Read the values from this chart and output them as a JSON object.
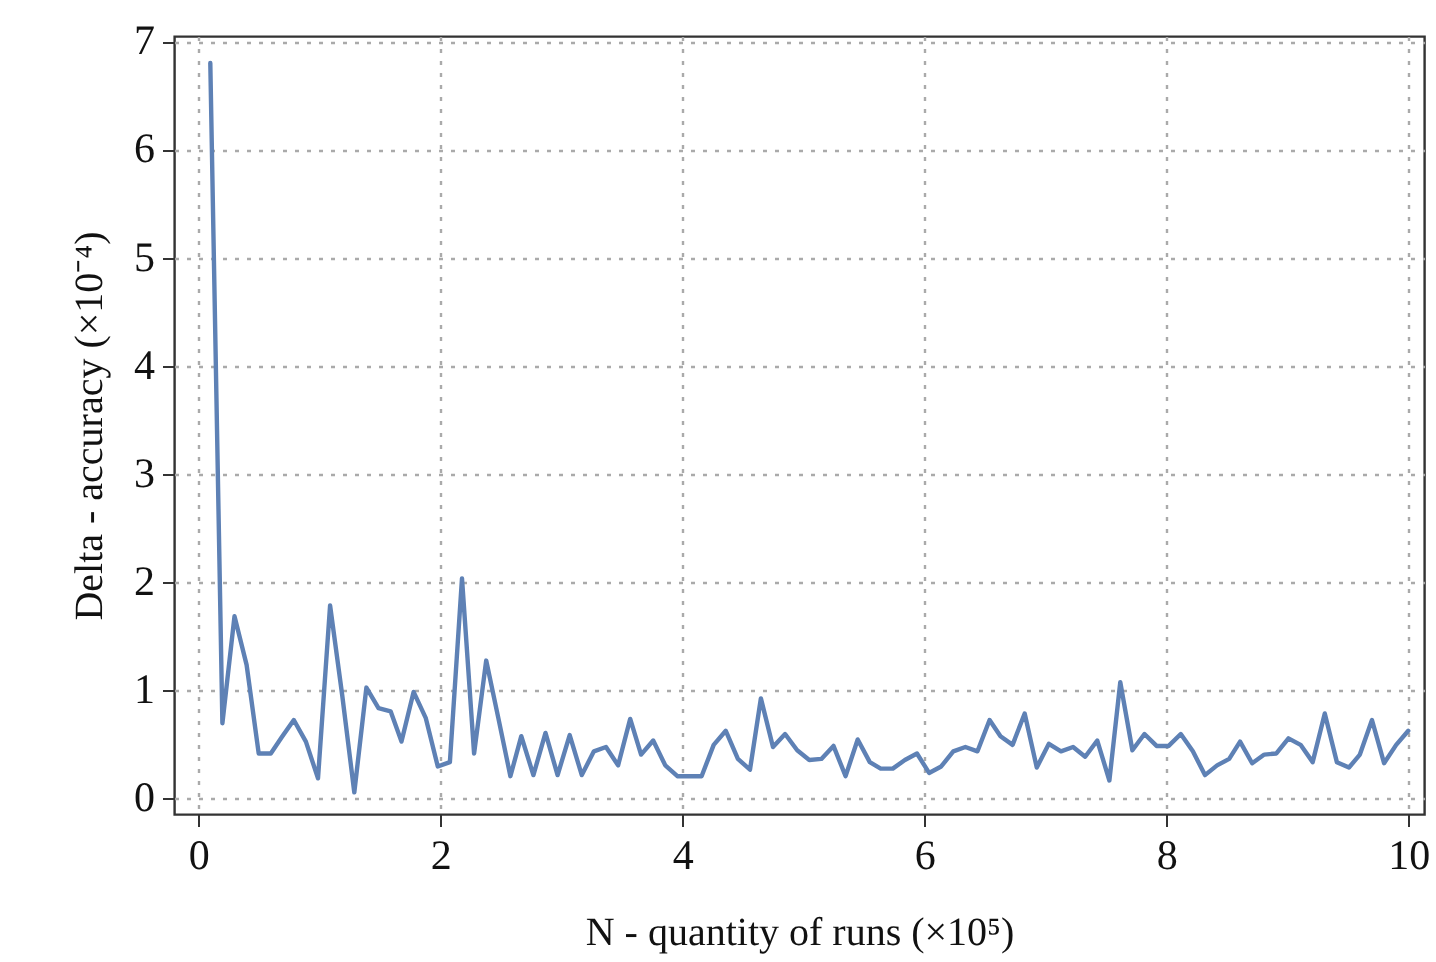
{
  "chart_data": {
    "type": "line",
    "xlabel": "N - quantity of runs (×10⁵)",
    "ylabel": "Delta - accuracy (×10⁻⁴)",
    "x": [
      0.1,
      0.2,
      0.3,
      0.4,
      0.5,
      0.6,
      0.69,
      0.79,
      0.89,
      0.99,
      1.09,
      1.19,
      1.29,
      1.39,
      1.49,
      1.59,
      1.68,
      1.78,
      1.88,
      1.98,
      2.08,
      2.18,
      2.28,
      2.38,
      2.48,
      2.58,
      2.67,
      2.77,
      2.87,
      2.97,
      3.07,
      3.17,
      3.27,
      3.37,
      3.47,
      3.57,
      3.66,
      3.76,
      3.86,
      3.96,
      4.06,
      4.16,
      4.26,
      4.36,
      4.46,
      4.56,
      4.65,
      4.75,
      4.85,
      4.95,
      5.05,
      5.15,
      5.25,
      5.35,
      5.45,
      5.55,
      5.64,
      5.74,
      5.84,
      5.94,
      6.04,
      6.14,
      6.24,
      6.34,
      6.44,
      6.54,
      6.63,
      6.73,
      6.83,
      6.93,
      7.03,
      7.13,
      7.23,
      7.33,
      7.43,
      7.53,
      7.62,
      7.72,
      7.82,
      7.92,
      8.02,
      8.12,
      8.22,
      8.32,
      8.42,
      8.52,
      8.61,
      8.71,
      8.81,
      8.91,
      9.01,
      9.11,
      9.21,
      9.31,
      9.41,
      9.51,
      9.6,
      9.7,
      9.8,
      9.9,
      10.0
    ],
    "series": [
      {
        "color": "#5e81b5",
        "values": [
          6.8,
          0.69,
          1.68,
          1.23,
          0.41,
          0.41,
          0.56,
          0.72,
          0.52,
          0.18,
          1.78,
          0.95,
          0.05,
          1.02,
          0.83,
          0.8,
          0.52,
          0.98,
          0.74,
          0.29,
          0.33,
          2.03,
          0.41,
          1.27,
          0.74,
          0.2,
          0.57,
          0.21,
          0.6,
          0.21,
          0.58,
          0.21,
          0.43,
          0.47,
          0.3,
          0.73,
          0.4,
          0.53,
          0.3,
          0.2,
          0.2,
          0.2,
          0.49,
          0.62,
          0.36,
          0.26,
          0.92,
          0.47,
          0.59,
          0.44,
          0.35,
          0.36,
          0.48,
          0.2,
          0.54,
          0.33,
          0.27,
          0.27,
          0.35,
          0.41,
          0.23,
          0.29,
          0.43,
          0.47,
          0.43,
          0.72,
          0.57,
          0.49,
          0.78,
          0.28,
          0.5,
          0.43,
          0.47,
          0.38,
          0.53,
          0.16,
          1.07,
          0.44,
          0.59,
          0.48,
          0.48,
          0.59,
          0.43,
          0.21,
          0.3,
          0.36,
          0.52,
          0.32,
          0.4,
          0.41,
          0.55,
          0.49,
          0.33,
          0.78,
          0.33,
          0.28,
          0.4,
          0.72,
          0.32,
          0.49,
          0.62
        ]
      }
    ],
    "xlim": [
      -0.2,
      10.13
    ],
    "ylim": [
      -0.15,
      7.05
    ],
    "xticks": [
      0,
      2,
      4,
      6,
      8,
      10
    ],
    "yticks": [
      0,
      1,
      2,
      3,
      4,
      5,
      6,
      7
    ],
    "grid": true,
    "line_style": "solid",
    "marker": "none"
  }
}
